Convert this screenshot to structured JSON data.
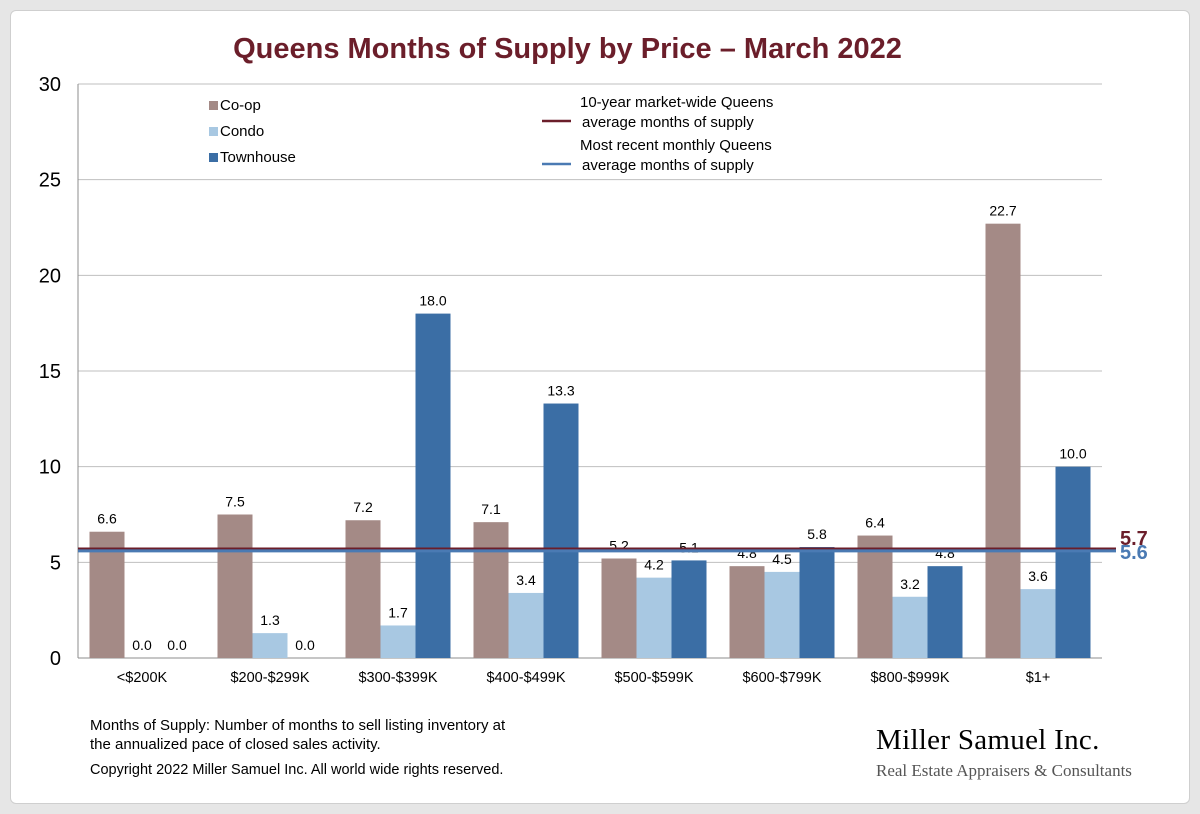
{
  "chart_data": {
    "type": "bar",
    "title": "Queens Months of Supply by Price – March 2022",
    "categories": [
      "<$200K",
      "$200-$299K",
      "$300-$399K",
      "$400-$499K",
      "$500-$599K",
      "$600-$799K",
      "$800-$999K",
      "$1+"
    ],
    "series": [
      {
        "name": "Co-op",
        "values": [
          6.6,
          7.5,
          7.2,
          7.1,
          5.2,
          4.8,
          6.4,
          22.7
        ],
        "labels": [
          "6.6",
          "7.5",
          "7.2",
          "7.1",
          "5.2",
          "4.8",
          "6.4",
          "22.7"
        ]
      },
      {
        "name": "Condo",
        "values": [
          0.0,
          1.3,
          1.7,
          3.4,
          4.2,
          4.5,
          3.2,
          3.6
        ],
        "labels": [
          "0.0",
          "1.3",
          "1.7",
          "3.4",
          "4.2",
          "4.5",
          "3.2",
          "3.6"
        ]
      },
      {
        "name": "Townhouse",
        "values": [
          0.0,
          0.0,
          18.0,
          13.3,
          5.1,
          5.8,
          4.8,
          10.0
        ],
        "labels": [
          "0.0",
          "0.0",
          "18.0",
          "13.3",
          "5.1",
          "5.8",
          "4.8",
          "10.0"
        ]
      }
    ],
    "reference_lines": [
      {
        "name_lines": [
          "10-year market-wide Queens",
          "average months of supply"
        ],
        "value": 5.7,
        "label": "5.7",
        "color": "#6b1e2a"
      },
      {
        "name_lines": [
          "Most recent monthly Queens",
          "average months of supply"
        ],
        "value": 5.6,
        "label": "5.6",
        "color": "#4a7ab3"
      }
    ],
    "ylim": [
      0,
      30
    ],
    "yticks": [
      0,
      5,
      10,
      15,
      20,
      25,
      30
    ],
    "xlabel": "",
    "ylabel": "",
    "grid": true,
    "legend": "top-left",
    "colors": {
      "coop": "#a48a86",
      "condo": "#a8c8e2",
      "townhouse": "#3b6ea5",
      "title": "#6b1e2a",
      "grid": "#bfbfbf"
    }
  },
  "footnote": {
    "line1": "Months of Supply: Number of months to sell listing inventory at",
    "line2": "the annualized pace of closed sales activity.",
    "copyright": "Copyright 2022 Miller Samuel Inc.  All world wide rights reserved."
  },
  "logo": {
    "name": "Miller Samuel Inc.",
    "tagline": "Real Estate Appraisers & Consultants"
  }
}
